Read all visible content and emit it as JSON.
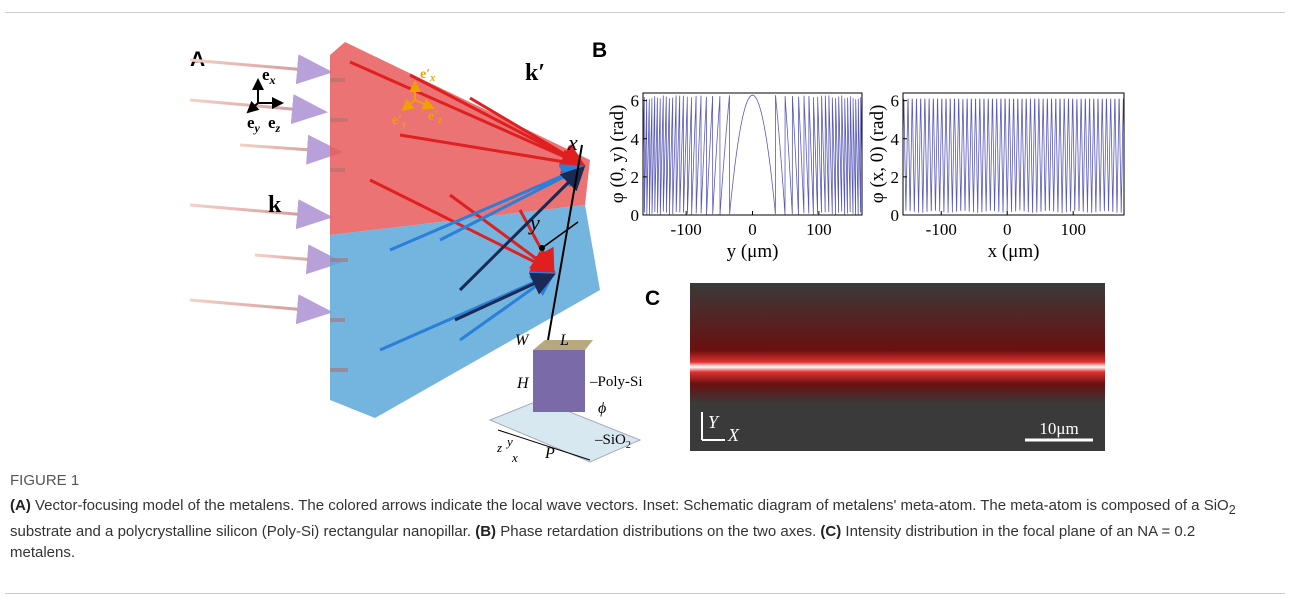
{
  "figure": {
    "panel_labels": [
      "A",
      "B",
      "C"
    ],
    "panel_a": {
      "lab_axes": [
        [
          "e",
          "x"
        ],
        [
          "e",
          "y"
        ],
        [
          "e",
          "z"
        ]
      ],
      "local_axes": [
        [
          "e′",
          "x"
        ],
        [
          "e′",
          "y"
        ],
        [
          "e′",
          "z"
        ]
      ],
      "k_prime": "k′",
      "k": "k",
      "axis_x": "x",
      "axis_y": "y",
      "inset": {
        "W": "W",
        "L": "L",
        "H": "H",
        "poly": "Poly-Si",
        "phi": "ϕ",
        "P": "P",
        "sio2": [
          "SiO",
          "2"
        ],
        "coords": [
          "z",
          "y",
          "x"
        ]
      }
    },
    "panel_b": [
      {
        "ylabel": "φ (0, y) (rad)",
        "xlabel": "y (μm)",
        "xlim": [
          -165,
          165
        ],
        "ylim": [
          0,
          6.4
        ],
        "xticks": [
          -100,
          0,
          100
        ],
        "yticks": [
          0,
          2,
          4,
          6
        ]
      },
      {
        "ylabel": "φ (x, 0) (rad)",
        "xlabel": "x (μm)",
        "xlim": [
          -158,
          177
        ],
        "ylim": [
          0,
          6.4
        ],
        "xticks": [
          -100,
          0,
          100
        ],
        "yticks": [
          0,
          2,
          4,
          6
        ]
      }
    ],
    "panel_c": {
      "y": "Y",
      "x": "X",
      "scale": "10μm"
    },
    "caption": {
      "label": "FIGURE 1",
      "a": {
        "tag": "(A)",
        "text1": " Vector-focusing model of the metalens. The colored arrows indicate the local wave vectors. Inset: Schematic diagram of metalens' meta-atom. The meta-atom is composed of a SiO",
        "sub": "2",
        "text2": " substrate and a polycrystalline silicon (Poly-Si) rectangular nanopillar."
      },
      "b": {
        "tag": "(B)",
        "text": " Phase retardation distributions on the two axes."
      },
      "c": {
        "tag": "(C)",
        "text": " Intensity distribution in the focal plane of an NA = 0.2 metalens."
      }
    }
  }
}
